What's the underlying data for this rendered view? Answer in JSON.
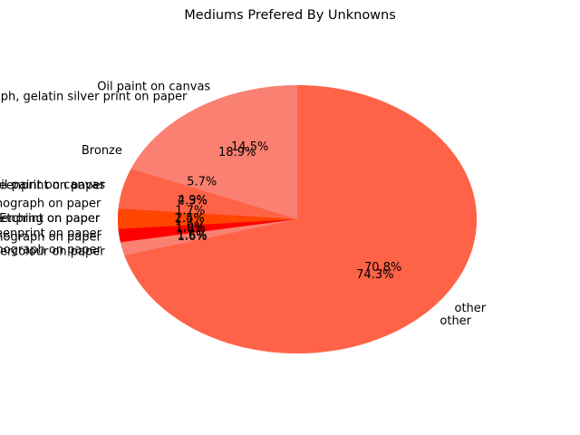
{
  "chart_data": {
    "type": "pie",
    "title": "Mediums Prefered By Unknowns",
    "series": [
      {
        "slices": [
          {
            "label": "Oil paint on canvas",
            "value": 14.5,
            "color": "#fa8072"
          },
          {
            "label": "Bronze",
            "value": 5.7,
            "color": "#ff6347"
          },
          {
            "label": "Screenprint on paper",
            "value": 2.3,
            "color": "#ff4500"
          },
          {
            "label": "Lithograph on paper",
            "value": 1.7,
            "color": "#ff0000"
          },
          {
            "label": "Etching on paper",
            "value": 1.5,
            "color": "#fa8072"
          },
          {
            "label": "other",
            "value": 74.3,
            "color": "#ff6347"
          }
        ]
      },
      {
        "slices": [
          {
            "label": "Photograph, gelatin silver print on paper",
            "value": 18.9,
            "color": "#fa8072"
          },
          {
            "label": "Oil paint on canvas",
            "value": 4.9,
            "color": "#ff6347"
          },
          {
            "label": "Screenprint on paper",
            "value": 2.4,
            "color": "#ff4500"
          },
          {
            "label": "Lithograph on paper",
            "value": 1.6,
            "color": "#ff0000"
          },
          {
            "label": "Watercolour on paper",
            "value": 1.6,
            "color": "#fa8072"
          },
          {
            "label": "other",
            "value": 70.8,
            "color": "#ff6347"
          }
        ]
      }
    ],
    "extra_labels": [
      "Screenprint on paper",
      "Lithograph on paper"
    ],
    "extra_pct": [
      "1.9%",
      "1.6%"
    ]
  }
}
